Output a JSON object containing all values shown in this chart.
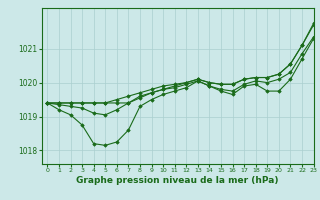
{
  "background_color": "#cce8e8",
  "line_color": "#1a6b1a",
  "grid_color": "#aacfcf",
  "xlabel": "Graphe pression niveau de la mer (hPa)",
  "xlabel_fontsize": 6.5,
  "xlim": [
    -0.5,
    23
  ],
  "ylim": [
    1017.6,
    1022.2
  ],
  "yticks": [
    1018,
    1019,
    1020,
    1021
  ],
  "xticks": [
    0,
    1,
    2,
    3,
    4,
    5,
    6,
    7,
    8,
    9,
    10,
    11,
    12,
    13,
    14,
    15,
    16,
    17,
    18,
    19,
    20,
    21,
    22,
    23
  ],
  "series": [
    [
      1019.4,
      1019.35,
      1019.3,
      1019.25,
      1019.1,
      1019.05,
      1019.2,
      1019.4,
      1019.55,
      1019.7,
      1019.8,
      1019.85,
      1019.95,
      1020.05,
      1019.9,
      1019.8,
      1019.75,
      1019.95,
      1020.05,
      1020.0,
      1020.1,
      1020.3,
      1020.85,
      1021.35
    ],
    [
      1019.4,
      1019.2,
      1019.05,
      1018.75,
      1018.2,
      1018.15,
      1018.25,
      1018.6,
      1019.3,
      1019.5,
      1019.65,
      1019.75,
      1019.85,
      1020.05,
      1019.9,
      1019.75,
      1019.65,
      1019.9,
      1019.95,
      1019.75,
      1019.75,
      1020.1,
      1020.7,
      1021.3
    ],
    [
      1019.4,
      1019.4,
      1019.4,
      1019.4,
      1019.4,
      1019.4,
      1019.5,
      1019.6,
      1019.7,
      1019.8,
      1019.9,
      1019.95,
      1020.0,
      1020.1,
      1020.0,
      1019.95,
      1019.95,
      1020.1,
      1020.15,
      1020.15,
      1020.25,
      1020.55,
      1021.1,
      1021.7
    ],
    [
      1019.4,
      1019.4,
      1019.4,
      1019.4,
      1019.4,
      1019.4,
      1019.4,
      1019.4,
      1019.6,
      1019.7,
      1019.8,
      1019.9,
      1020.0,
      1020.1,
      1020.0,
      1019.95,
      1019.95,
      1020.1,
      1020.15,
      1020.15,
      1020.25,
      1020.55,
      1021.1,
      1021.75
    ]
  ]
}
